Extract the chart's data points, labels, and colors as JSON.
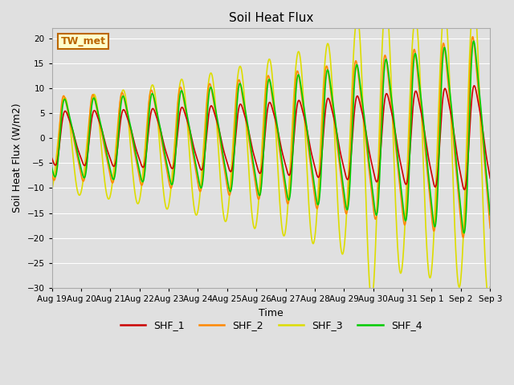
{
  "title": "Soil Heat Flux",
  "xlabel": "Time",
  "ylabel": "Soil Heat Flux (W/m2)",
  "ylim": [
    -30,
    22
  ],
  "yticks": [
    -30,
    -25,
    -20,
    -15,
    -10,
    -5,
    0,
    5,
    10,
    15,
    20
  ],
  "bg_color": "#e0e0e0",
  "grid_color": "#ffffff",
  "annotation_text": "TW_met",
  "annotation_bg": "#ffffcc",
  "annotation_border": "#bb6600",
  "colors": {
    "SHF_1": "#cc0000",
    "SHF_2": "#ff8800",
    "SHF_3": "#dddd00",
    "SHF_4": "#00cc00"
  },
  "line_width": 1.2
}
